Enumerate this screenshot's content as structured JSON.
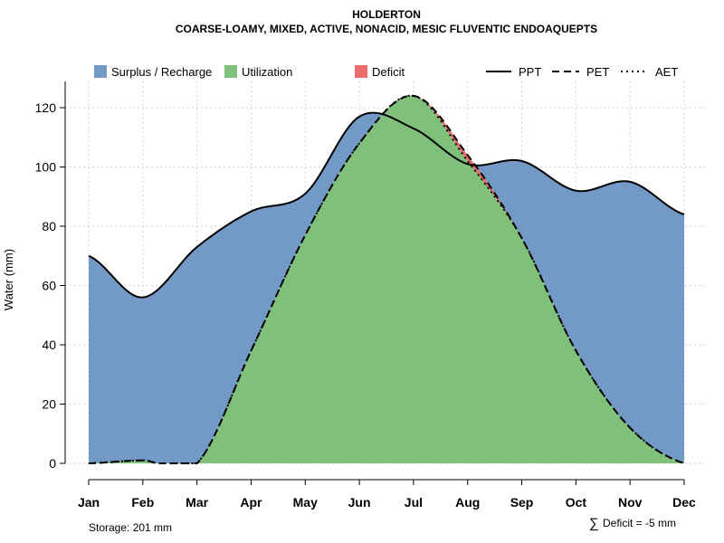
{
  "chart_data": {
    "type": "area",
    "title": "HOLDERTON",
    "subtitle": "COARSE-LOAMY, MIXED, ACTIVE, NONACID, MESIC FLUVENTIC ENDOAQUEPTS",
    "xlabel": "",
    "ylabel": "Water (mm)",
    "ylim": [
      0,
      125
    ],
    "yticks": [
      0,
      20,
      40,
      60,
      80,
      100,
      120
    ],
    "grid": true,
    "legend_position": "top",
    "categories": [
      "Jan",
      "Feb",
      "Mar",
      "Apr",
      "May",
      "Jun",
      "Jul",
      "Aug",
      "Sep",
      "Oct",
      "Nov",
      "Dec"
    ],
    "series": [
      {
        "name": "PPT",
        "style": "solid",
        "values": [
          70,
          56,
          73,
          85,
          91,
          117,
          113,
          101,
          102,
          92,
          95,
          84
        ]
      },
      {
        "name": "PET",
        "style": "dashed",
        "values": [
          0,
          1,
          0,
          38,
          77,
          108,
          124,
          104,
          76,
          38,
          12,
          0
        ]
      },
      {
        "name": "AET",
        "style": "dotted",
        "values": [
          0,
          1,
          0,
          38,
          77,
          108,
          124,
          102,
          76,
          38,
          12,
          0
        ]
      }
    ],
    "areas": [
      {
        "name": "Surplus / Recharge",
        "color": "#7399C6"
      },
      {
        "name": "Utilization",
        "color": "#7FC17B"
      },
      {
        "name": "Deficit",
        "color": "#EC6D6D"
      }
    ],
    "legend_lines": [
      {
        "name": "PPT",
        "style": "solid"
      },
      {
        "name": "PET",
        "style": "dashed"
      },
      {
        "name": "AET",
        "style": "dotted"
      }
    ],
    "annotations": {
      "storage": "Storage: 201 mm",
      "deficit_symbol": "∑",
      "deficit": "Deficit = -5 mm"
    }
  }
}
